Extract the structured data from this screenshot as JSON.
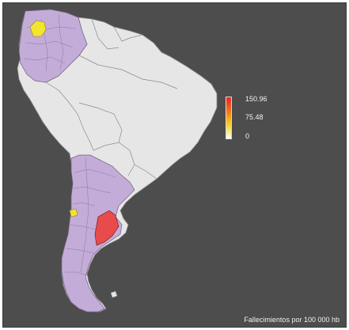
{
  "legend": {
    "max_label": "150.96",
    "mid_label": "75.48",
    "min_label": "0",
    "scale_colors": [
      "#ffffff",
      "#f2f08a",
      "#f6c21a",
      "#f06b1e",
      "#e8242a"
    ]
  },
  "caption": "Fallecimientos por 100 000 hb",
  "colors": {
    "background": "#4d4d4d",
    "no_data": "#e6e6e6",
    "low": "#c4acd8",
    "yellow": "#f3e52d",
    "high": "#e84b4b",
    "border": "#555555"
  },
  "regions": [
    {
      "name": "Colombia",
      "fill": "low"
    },
    {
      "name": "Argentina",
      "fill": "low"
    },
    {
      "name": "Buenos Aires",
      "fill": "high"
    },
    {
      "name": "Bogota",
      "fill": "yellow"
    },
    {
      "name": "Mendoza",
      "fill": "yellow"
    }
  ]
}
